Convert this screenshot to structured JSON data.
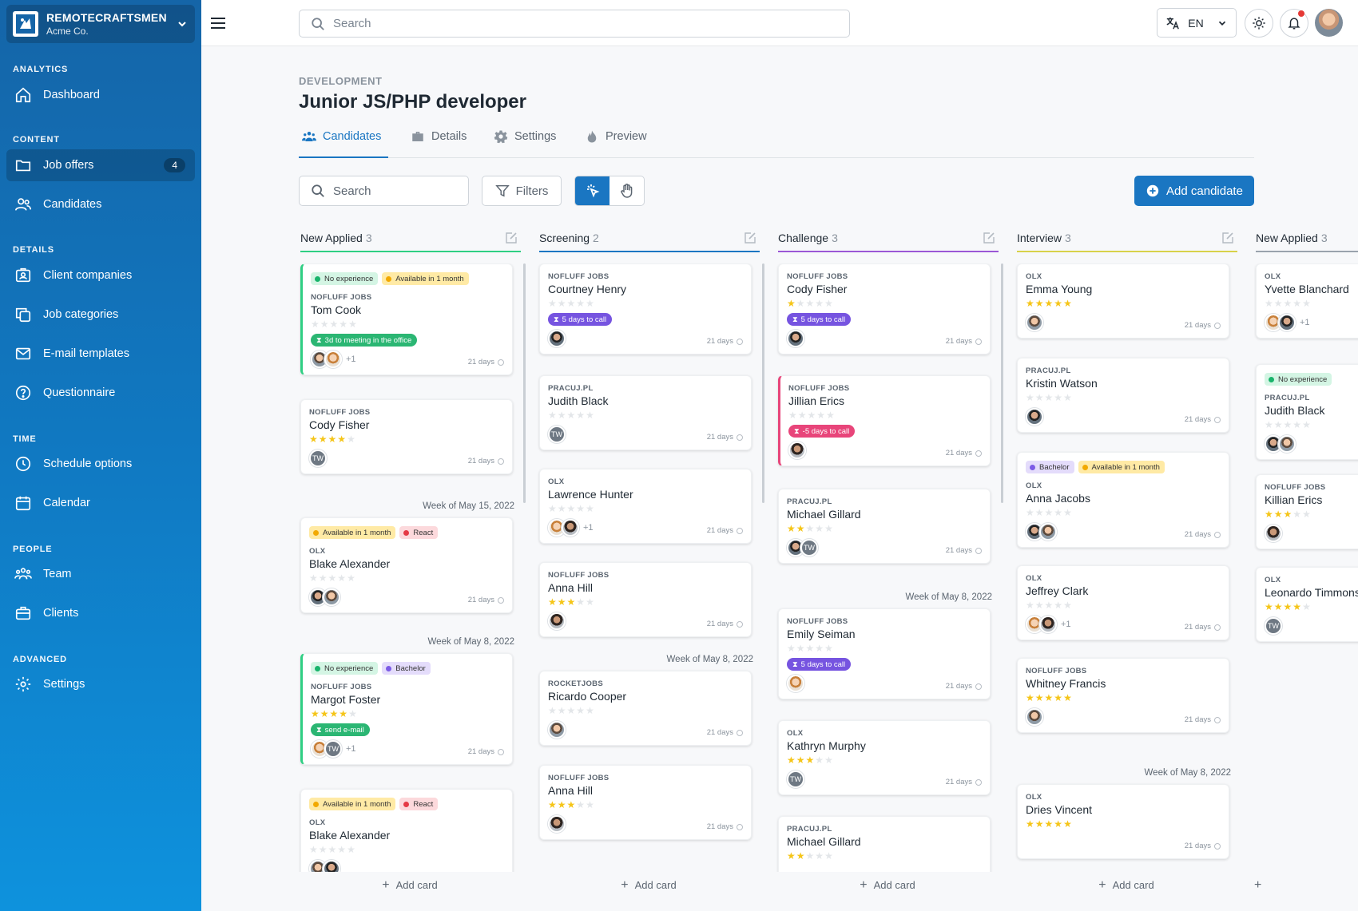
{
  "org": {
    "name": "REMOTECRAFTSMEN",
    "sub": "Acme Co."
  },
  "sidebar": {
    "sections": {
      "analytics": "ANALYTICS",
      "content": "CONTENT",
      "details": "DETAILS",
      "time": "TIME",
      "people": "PEOPLE",
      "advanced": "ADVANCED"
    },
    "items": {
      "dashboard": "Dashboard",
      "job_offers": "Job offers",
      "job_offers_badge": "4",
      "candidates": "Candidates",
      "client_companies": "Client companies",
      "job_categories": "Job categories",
      "email_templates": "E-mail templates",
      "questionnaire": "Questionnaire",
      "schedule": "Schedule options",
      "calendar": "Calendar",
      "team": "Team",
      "clients": "Clients",
      "settings": "Settings"
    }
  },
  "topbar": {
    "search_placeholder": "Search",
    "lang": "EN"
  },
  "page": {
    "crumb": "DEVELOPMENT",
    "title": "Junior JS/PHP developer",
    "tabs": {
      "candidates": "Candidates",
      "details": "Details",
      "settings": "Settings",
      "preview": "Preview"
    },
    "search_placeholder": "Search",
    "filters": "Filters",
    "add_candidate": "Add candidate",
    "add_card": "Add card"
  },
  "colors": {
    "accent": "#1a76c2",
    "col1": "#2fcf83",
    "col2": "#1a76c2",
    "col3": "#9b57d6",
    "col4": "#d8d24a",
    "col5": "#9aa3ad"
  },
  "columns": [
    {
      "title": "New Applied",
      "count": "3",
      "week1": "Week of May 15, 2022",
      "week2": "Week of May 8, 2022",
      "cards": [
        {
          "tags": [
            "No experience",
            "Available in 1 month"
          ],
          "source": "NOFLUFF JOBS",
          "name": "Tom Cook",
          "pill": "3d to meeting in the office",
          "more": "+1",
          "days": "21 days",
          "stars": 0
        },
        {
          "source": "NOFLUFF JOBS",
          "name": "Cody Fisher",
          "days": "21 days",
          "stars": 4
        },
        {
          "tags": [
            "Available in 1 month",
            "React"
          ],
          "source": "OLX",
          "name": "Blake Alexander",
          "days": "21 days",
          "stars": 0
        },
        {
          "tags": [
            "No experience",
            "Bachelor"
          ],
          "source": "NOFLUFF JOBS",
          "name": "Margot Foster",
          "pill": "send e-mail",
          "more": "+1",
          "days": "21 days",
          "stars": 4
        },
        {
          "tags": [
            "Available in 1 month",
            "React"
          ],
          "source": "OLX",
          "name": "Blake Alexander",
          "stars": 0
        }
      ]
    },
    {
      "title": "Screening",
      "count": "2",
      "week1": "Week of May 8, 2022",
      "cards": [
        {
          "source": "NOFLUFF JOBS",
          "name": "Courtney Henry",
          "pill": "5 days to call",
          "days": "21 days",
          "stars": 0
        },
        {
          "source": "PRACUJ.PL",
          "name": "Judith Black",
          "days": "21 days",
          "stars": 0
        },
        {
          "source": "OLX",
          "name": "Lawrence Hunter",
          "more": "+1",
          "days": "21 days",
          "stars": 0
        },
        {
          "source": "NOFLUFF JOBS",
          "name": "Anna Hill",
          "days": "21 days",
          "stars": 3
        },
        {
          "source": "ROCKETJOBS",
          "name": "Ricardo Cooper",
          "days": "21 days",
          "stars": 0
        },
        {
          "source": "NOFLUFF JOBS",
          "name": "Anna Hill",
          "days": "21 days",
          "stars": 3
        }
      ]
    },
    {
      "title": "Challenge",
      "count": "3",
      "week1": "Week of May 8, 2022",
      "cards": [
        {
          "source": "NOFLUFF JOBS",
          "name": "Cody Fisher",
          "pill": "5 days to call",
          "days": "21 days",
          "stars": 1
        },
        {
          "source": "NOFLUFF JOBS",
          "name": "Jillian Erics",
          "pill": "-5 days to call",
          "days": "21 days",
          "stars": 0
        },
        {
          "source": "PRACUJ.PL",
          "name": "Michael Gillard",
          "days": "21 days",
          "stars": 2
        },
        {
          "source": "NOFLUFF JOBS",
          "name": "Emily Seiman",
          "pill": "5 days to call",
          "days": "21 days",
          "stars": 0
        },
        {
          "source": "OLX",
          "name": "Kathryn Murphy",
          "days": "21 days",
          "stars": 3
        },
        {
          "source": "PRACUJ.PL",
          "name": "Michael Gillard",
          "stars": 2
        }
      ]
    },
    {
      "title": "Interview",
      "count": "3",
      "week1": "Week of May 8, 2022",
      "cards": [
        {
          "source": "OLX",
          "name": "Emma Young",
          "days": "21 days",
          "stars": 5
        },
        {
          "source": "PRACUJ.PL",
          "name": "Kristin Watson",
          "days": "21 days",
          "stars": 0
        },
        {
          "tags": [
            "Bachelor",
            "Available in 1 month"
          ],
          "source": "OLX",
          "name": "Anna Jacobs",
          "days": "21 days",
          "stars": 0
        },
        {
          "source": "OLX",
          "name": "Jeffrey Clark",
          "more": "+1",
          "days": "21 days",
          "stars": 0
        },
        {
          "source": "NOFLUFF JOBS",
          "name": "Whitney Francis",
          "days": "21 days",
          "stars": 5
        },
        {
          "source": "OLX",
          "name": "Dries Vincent",
          "days": "21 days",
          "stars": 5
        }
      ]
    },
    {
      "title": "New Applied",
      "count": "3",
      "cards": [
        {
          "source": "OLX",
          "name": "Yvette Blanchard",
          "more": "+1",
          "stars": 0
        },
        {
          "tags": [
            "No experience"
          ],
          "source": "PRACUJ.PL",
          "name": "Judith Black",
          "stars": 0
        },
        {
          "source": "NOFLUFF JOBS",
          "name": "Killian Erics",
          "stars": 3
        },
        {
          "source": "OLX",
          "name": "Leonardo Timmons",
          "stars": 4
        }
      ]
    }
  ]
}
